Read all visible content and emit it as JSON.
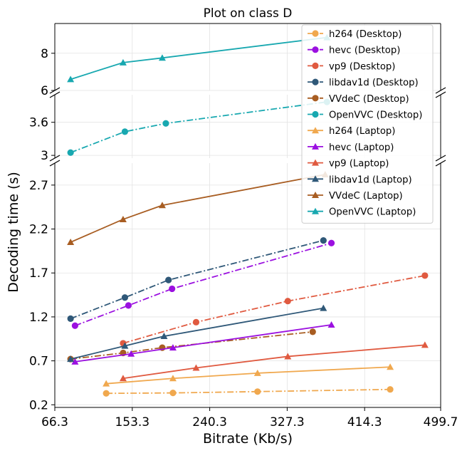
{
  "chart_data": {
    "type": "line",
    "title": "Plot on class D",
    "xlabel": "Bitrate (Kb/s)",
    "ylabel": "Decoding time (s)",
    "xlim": [
      66.3,
      499.7
    ],
    "x_ticks": [
      "66.3",
      "153.3",
      "240.3",
      "327.3",
      "414.3",
      "499.7"
    ],
    "y_broken_axis": true,
    "panels": [
      {
        "ylim": [
          6,
          9.6
        ],
        "y_ticks": [
          "6",
          "8"
        ]
      },
      {
        "ylim": [
          2.95,
          4.1
        ],
        "y_ticks": [
          "3",
          "3.6"
        ]
      },
      {
        "ylim": [
          0.17,
          2.95
        ],
        "y_ticks": [
          "0.2",
          "0.7",
          "1.2",
          "1.7",
          "2.2",
          "2.7"
        ]
      }
    ],
    "grid": true,
    "legend_position": "top-right",
    "series": [
      {
        "name": "h264 (Desktop)",
        "device": "Desktop",
        "color": "#f0a84e",
        "linestyle": "dashdot",
        "marker": "circle",
        "x": [
          124,
          199,
          294,
          443
        ],
        "y": [
          0.33,
          0.335,
          0.35,
          0.375
        ]
      },
      {
        "name": "hevc (Desktop)",
        "device": "Desktop",
        "color": "#9b10e0",
        "linestyle": "dashdot",
        "marker": "circle",
        "x": [
          89,
          149,
          198,
          377
        ],
        "y": [
          1.1,
          1.33,
          1.52,
          2.04
        ]
      },
      {
        "name": "vp9 (Desktop)",
        "device": "Desktop",
        "color": "#e05a40",
        "linestyle": "dashdot",
        "marker": "circle",
        "x": [
          143,
          225,
          328,
          482
        ],
        "y": [
          0.9,
          1.14,
          1.38,
          1.67
        ]
      },
      {
        "name": "libdav1d (Desktop)",
        "device": "Desktop",
        "color": "#2f5878",
        "linestyle": "dashdot",
        "marker": "circle",
        "x": [
          84,
          145,
          194,
          368
        ],
        "y": [
          1.18,
          1.42,
          1.62,
          2.07
        ]
      },
      {
        "name": "VVdeC (Desktop)",
        "device": "Desktop",
        "color": "#a85d22",
        "linestyle": "dashdot",
        "marker": "circle",
        "x": [
          84,
          143,
          187,
          356
        ],
        "y": [
          0.72,
          0.79,
          0.85,
          1.03
        ]
      },
      {
        "name": "OpenVVC (Desktop)",
        "device": "Desktop",
        "color": "#18a8b0",
        "linestyle": "dashdot",
        "marker": "circle",
        "x": [
          84,
          145,
          191,
          372
        ],
        "y": [
          3.05,
          3.43,
          3.58,
          3.97
        ]
      },
      {
        "name": "h264 (Laptop)",
        "device": "Laptop",
        "color": "#f0a84e",
        "linestyle": "solid",
        "marker": "triangle",
        "x": [
          124,
          199,
          294,
          443
        ],
        "y": [
          0.44,
          0.5,
          0.56,
          0.63
        ]
      },
      {
        "name": "hevc (Laptop)",
        "device": "Laptop",
        "color": "#9b10e0",
        "linestyle": "solid",
        "marker": "triangle",
        "x": [
          89,
          152,
          199,
          377
        ],
        "y": [
          0.69,
          0.78,
          0.85,
          1.11
        ]
      },
      {
        "name": "vp9 (Laptop)",
        "device": "Laptop",
        "color": "#e05a40",
        "linestyle": "solid",
        "marker": "triangle",
        "x": [
          143,
          225,
          328,
          482
        ],
        "y": [
          0.5,
          0.62,
          0.75,
          0.88
        ]
      },
      {
        "name": "libdav1d (Laptop)",
        "device": "Laptop",
        "color": "#2f5878",
        "linestyle": "solid",
        "marker": "triangle",
        "x": [
          84,
          145,
          189,
          368
        ],
        "y": [
          0.72,
          0.87,
          0.98,
          1.3
        ]
      },
      {
        "name": "VVdeC (Laptop)",
        "device": "Laptop",
        "color": "#a85d22",
        "linestyle": "solid",
        "marker": "triangle",
        "x": [
          84,
          143,
          187,
          370
        ],
        "y": [
          2.05,
          2.31,
          2.47,
          2.82
        ]
      },
      {
        "name": "OpenVVC (Laptop)",
        "device": "Laptop",
        "color": "#18a8b0",
        "linestyle": "solid",
        "marker": "triangle",
        "x": [
          84,
          143,
          187,
          372
        ],
        "y": [
          6.6,
          7.5,
          7.75,
          8.85
        ]
      }
    ]
  }
}
